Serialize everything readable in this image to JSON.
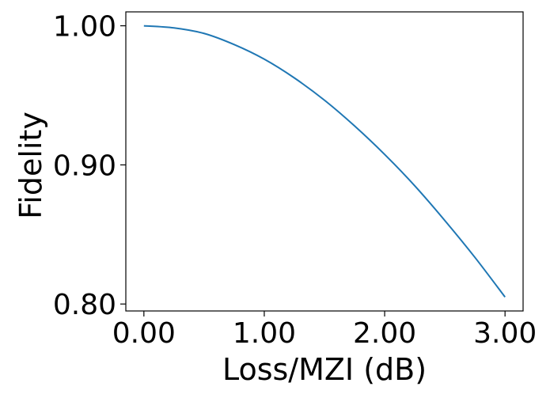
{
  "chart_data": {
    "type": "line",
    "xlabel": "Loss/MZI (dB)",
    "ylabel": "Fidelity",
    "xlim": [
      -0.15,
      3.15
    ],
    "ylim": [
      0.795,
      1.01
    ],
    "xticks": [
      0.0,
      1.0,
      2.0,
      3.0
    ],
    "xtick_labels": [
      "0.00",
      "1.00",
      "2.00",
      "3.00"
    ],
    "yticks": [
      0.8,
      0.9,
      1.0
    ],
    "ytick_labels": [
      "0.80",
      "0.90",
      "1.00"
    ],
    "grid": false,
    "line_color": "#1f77b4",
    "series": [
      {
        "x": [
          0.0,
          0.25,
          0.5,
          0.75,
          1.0,
          1.25,
          1.5,
          1.75,
          2.0,
          2.25,
          2.5,
          2.75,
          3.0
        ],
        "y": [
          1.0,
          0.9985,
          0.9945,
          0.9865,
          0.976,
          0.9625,
          0.9465,
          0.928,
          0.9075,
          0.885,
          0.86,
          0.8335,
          0.805
        ]
      }
    ]
  }
}
